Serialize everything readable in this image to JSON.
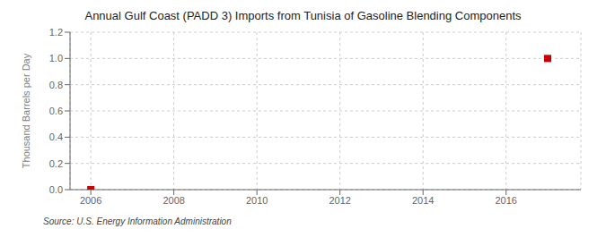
{
  "chart_data": {
    "type": "scatter",
    "title": "Annual Gulf Coast (PADD 3) Imports from Tunisia of Gasoline Blending Components",
    "ylabel": "Thousand Barrels per Day",
    "source": "Source: U.S. Energy Information Administration",
    "x": [
      2006,
      2017
    ],
    "values": [
      0.0,
      1.0
    ],
    "color": "#cc0000",
    "marker": "square",
    "xlim": [
      2005.5,
      2017.8
    ],
    "ylim": [
      0,
      1.2
    ],
    "xticks": [
      2006,
      2008,
      2010,
      2012,
      2014,
      2016
    ],
    "yticks": [
      {
        "value": 0.0,
        "label": "0.0"
      },
      0.2,
      0.4,
      0.6,
      {
        "value": 0.8,
        "label": "0.8"
      },
      {
        "value": 1.0,
        "label": "1.0"
      },
      1.2
    ],
    "grid": true
  }
}
